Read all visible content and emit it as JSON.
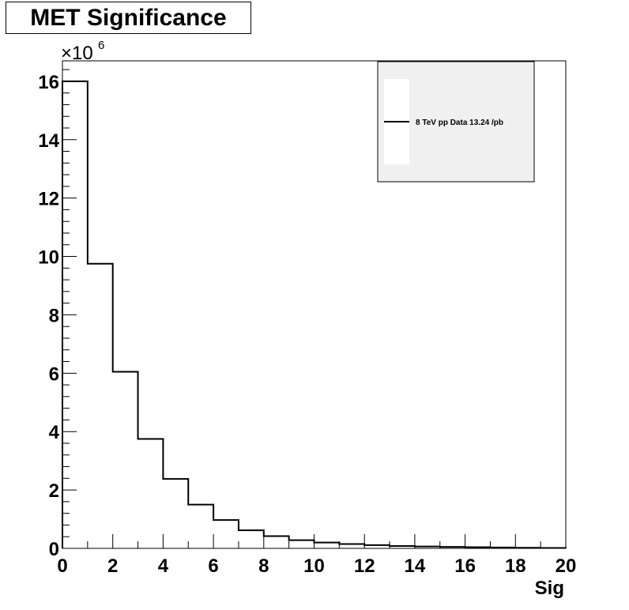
{
  "chart_data": {
    "type": "histogram",
    "title": "MET Significance",
    "xlabel": "Sig",
    "ylabel": "",
    "y_multiplier": "×10",
    "y_multiplier_exp": "6",
    "xlim": [
      0,
      20
    ],
    "ylim": [
      0,
      16.7
    ],
    "x_ticks": [
      "0",
      "2",
      "4",
      "6",
      "8",
      "10",
      "12",
      "14",
      "16",
      "18",
      "20"
    ],
    "y_ticks": [
      "0",
      "2",
      "4",
      "6",
      "8",
      "10",
      "12",
      "14",
      "16"
    ],
    "bin_edges": [
      0,
      1,
      2,
      3,
      4,
      5,
      6,
      7,
      8,
      9,
      10,
      11,
      12,
      13,
      14,
      15,
      16,
      17,
      18,
      19,
      20
    ],
    "series": [
      {
        "name": "8 TeV pp Data 13.24 /pb",
        "color": "#000000",
        "values": [
          16.0,
          9.75,
          6.05,
          3.75,
          2.38,
          1.5,
          0.97,
          0.62,
          0.42,
          0.28,
          0.2,
          0.15,
          0.11,
          0.08,
          0.065,
          0.05,
          0.04,
          0.03,
          0.02,
          0.015
        ]
      }
    ],
    "legend": {
      "position": "top-right",
      "background": "#f0f0f0"
    },
    "grid": false
  }
}
